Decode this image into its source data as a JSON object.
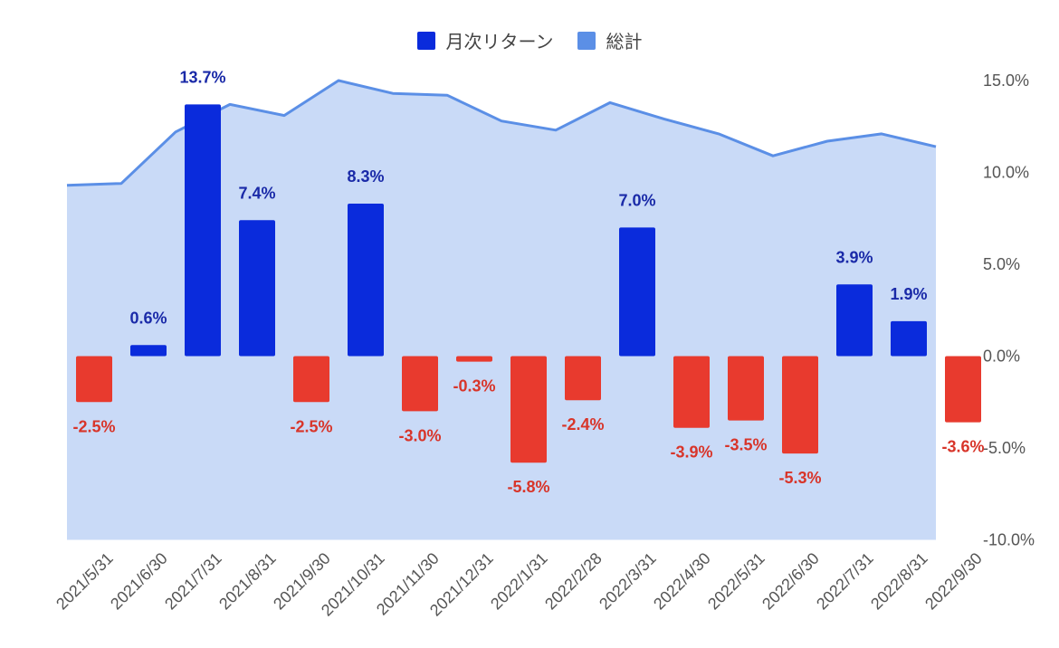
{
  "chart_data": {
    "type": "bar+area",
    "legend": {
      "position": "top-center",
      "entries": [
        {
          "name": "月次リターン",
          "color": "#0a2bdc"
        },
        {
          "name": "総計",
          "color": "#5b8fe6"
        }
      ]
    },
    "categories": [
      "2021/5/31",
      "2021/6/30",
      "2021/7/31",
      "2021/8/31",
      "2021/9/30",
      "2021/10/31",
      "2021/11/30",
      "2021/12/31",
      "2022/1/31",
      "2022/2/28",
      "2022/3/31",
      "2022/4/30",
      "2022/5/31",
      "2022/6/30",
      "2022/7/31",
      "2022/8/31",
      "2022/9/30"
    ],
    "monthly_return": {
      "name": "月次リターン",
      "values": [
        -2.5,
        0.6,
        13.7,
        7.4,
        -2.5,
        8.3,
        -3.0,
        -0.3,
        -5.8,
        -2.4,
        7.0,
        -3.9,
        -3.5,
        -5.3,
        3.9,
        1.9,
        -3.6
      ],
      "labels": [
        "-2.5%",
        "0.6%",
        "13.7%",
        "7.4%",
        "-2.5%",
        "8.3%",
        "-3.0%",
        "-0.3%",
        "-5.8%",
        "-2.4%",
        "7.0%",
        "-3.9%",
        "-3.5%",
        "-5.3%",
        "3.9%",
        "1.9%",
        "-3.6%"
      ],
      "positive_color": "#0a2bdc",
      "negative_color": "#e83a2e",
      "positive_label_color": "#1a2aa8",
      "negative_label_color": "#d8352a"
    },
    "total": {
      "name": "総計",
      "values": [
        9.3,
        9.4,
        12.2,
        13.7,
        13.1,
        15.0,
        14.3,
        14.2,
        12.8,
        12.3,
        13.8,
        12.9,
        12.1,
        10.9,
        11.7,
        12.1,
        11.4
      ],
      "line_color": "#5b8fe6",
      "fill_color": "#c9daf7"
    },
    "y_axis": {
      "position": "right",
      "min": -10,
      "max": 15,
      "ticks": [
        {
          "value": 15,
          "label": "15.0%"
        },
        {
          "value": 10,
          "label": "10.0%"
        },
        {
          "value": 5,
          "label": "5.0%"
        },
        {
          "value": 0,
          "label": "0.0%"
        },
        {
          "value": -5,
          "label": "-5.0%"
        },
        {
          "value": -10,
          "label": "-10.0%"
        }
      ]
    },
    "grid": false
  }
}
